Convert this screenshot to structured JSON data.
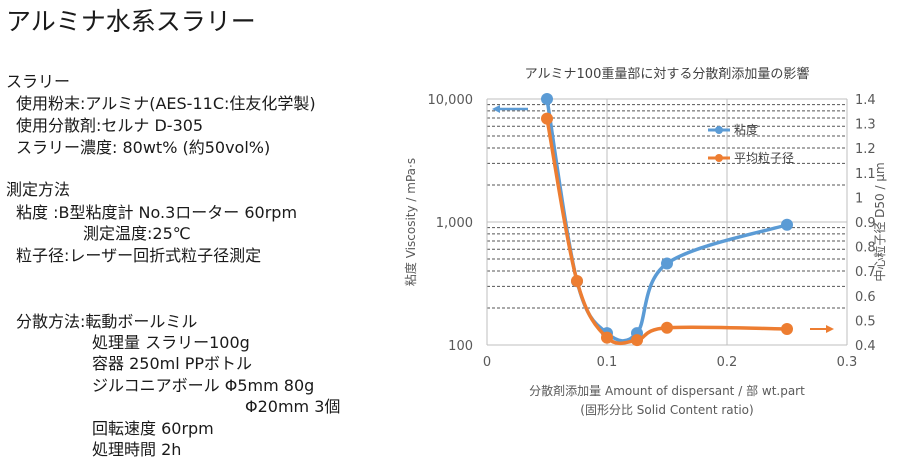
{
  "slide": {
    "title": "アルミナ水系スラリー",
    "lines": [
      "スラリー",
      "使用粉末:アルミナ(AES-11C:住友化学製)",
      "使用分散剤:セルナ D-305",
      "スラリー濃度: 80wt% (約50vol%)",
      "測定方法",
      "粘度 :B型粘度計 No.3ローター 60rpm",
      "測定温度:25℃",
      "粒子径:レーザー回折式粒子径測定",
      "分散方法:転動ボールミル",
      "処理量 スラリー100g",
      "容器 250ml PPボトル",
      "ジルコニアボール Φ5mm 80g",
      "Φ20mm 3個",
      "回転速度 60rpm",
      "処理時間 2h"
    ]
  },
  "chart_data": {
    "type": "line",
    "title": "アルミナ100重量部に対する分散剤添加量の影響",
    "xlabel": "分散剤添加量 Amount of dispersant / 部 wt.part",
    "xlabel2": "(固形分比 Solid Content ratio)",
    "ylabel": "粘度 Viscosity / mPa·s",
    "y2label": "中心粒子径 D50 / μm",
    "xlim": [
      0,
      0.3
    ],
    "x_ticks": [
      "0",
      "0.1",
      "0.2",
      "0.3"
    ],
    "ylim": [
      100,
      10000
    ],
    "y_scale": "log",
    "y_ticks": [
      "100",
      "1,000",
      "10,000"
    ],
    "y2lim": [
      0.4,
      1.4
    ],
    "y2_ticks": [
      "0.4",
      "0.5",
      "0.6",
      "0.7",
      "0.8",
      "0.9",
      "1",
      "1.1",
      "1.2",
      "1.3",
      "1.4"
    ],
    "legend": "top-right",
    "series": [
      {
        "name": "粘度",
        "axis": "left",
        "color": "#5b9bd5",
        "x": [
          0.05,
          0.075,
          0.1,
          0.125,
          0.15,
          0.25
        ],
        "y": [
          10000,
          330,
          125,
          125,
          460,
          950
        ],
        "arrow": "left"
      },
      {
        "name": "平均粒子径",
        "axis": "right",
        "color": "#ed7d31",
        "x": [
          0.05,
          0.075,
          0.1,
          0.125,
          0.15,
          0.25
        ],
        "y": [
          1.32,
          0.66,
          0.43,
          0.42,
          0.47,
          0.465
        ],
        "arrow": "right"
      }
    ]
  }
}
